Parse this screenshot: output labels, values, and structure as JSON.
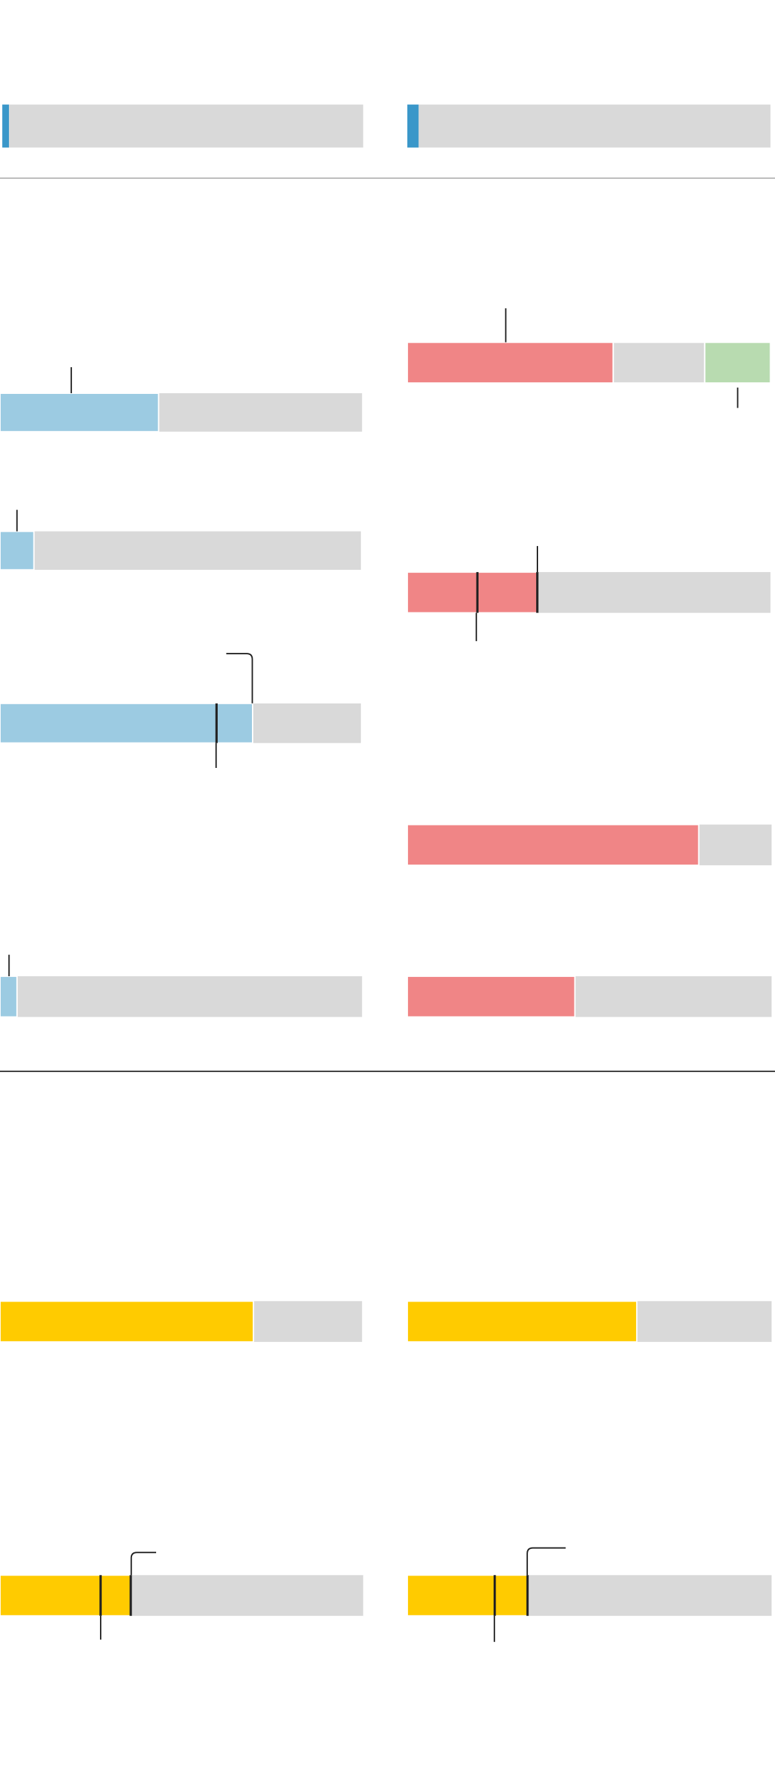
{
  "track_color": "#d9d9d9",
  "bars": [
    {
      "values": [
        43.8
      ],
      "colors": [
        "#9ccbe2"
      ]
    },
    {
      "values": [
        9.4
      ],
      "colors": [
        "#9ccbe2"
      ]
    },
    {
      "values": [
        70
      ],
      "colors": [
        "#9ccbe2"
      ],
      "markers": [
        60
      ]
    },
    {
      "values": [
        4.7
      ],
      "colors": [
        "#9ccbe2"
      ]
    },
    {
      "values": [
        56.7,
        25.2,
        18.1
      ],
      "colors": [
        "#f08586",
        "#d9d9d9",
        "#b8dbb0"
      ]
    },
    {
      "values": [
        35.8
      ],
      "colors": [
        "#f08586"
      ],
      "markers": [
        19.3,
        35.8
      ]
    },
    {
      "values": [
        80
      ],
      "colors": [
        "#f08586"
      ]
    },
    {
      "values": [
        46
      ],
      "colors": [
        "#f08586"
      ]
    },
    {
      "values": [
        70
      ],
      "colors": [
        "#ffcb00"
      ]
    },
    {
      "values": [
        63
      ],
      "colors": [
        "#ffcb00"
      ]
    },
    {
      "values": [
        36
      ],
      "colors": [
        "#ffcb00"
      ],
      "markers": [
        27.7,
        36
      ]
    },
    {
      "values": [
        33
      ],
      "colors": [
        "#ffcb00"
      ],
      "markers": [
        24,
        33
      ]
    }
  ]
}
